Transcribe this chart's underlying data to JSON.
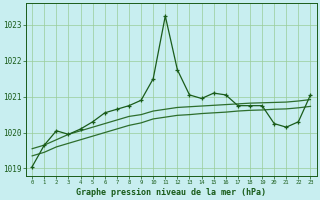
{
  "title": "Graphe pression niveau de la mer (hPa)",
  "background_color": "#c8eef0",
  "grid_color": "#99cc99",
  "line_color_volatile": "#1a5c1a",
  "line_color_smooth1": "#2d6e2d",
  "line_color_smooth2": "#2d6e2d",
  "xlim": [
    -0.5,
    23.5
  ],
  "ylim": [
    1018.8,
    1023.6
  ],
  "yticks": [
    1019,
    1020,
    1021,
    1022,
    1023
  ],
  "xticks": [
    0,
    1,
    2,
    3,
    4,
    5,
    6,
    7,
    8,
    9,
    10,
    11,
    12,
    13,
    14,
    15,
    16,
    17,
    18,
    19,
    20,
    21,
    22,
    23
  ],
  "volatile_x": [
    0,
    1,
    2,
    3,
    4,
    5,
    6,
    7,
    8,
    9,
    10,
    11,
    12,
    13,
    14,
    15,
    16,
    17,
    18,
    19,
    20,
    21,
    22,
    23
  ],
  "volatile_y": [
    1019.05,
    1019.65,
    1020.05,
    1019.95,
    1020.1,
    1020.3,
    1020.55,
    1020.65,
    1020.75,
    1020.9,
    1021.5,
    1023.25,
    1021.75,
    1021.05,
    1020.95,
    1021.1,
    1021.05,
    1020.75,
    1020.75,
    1020.75,
    1020.25,
    1020.15,
    1020.3,
    1021.05
  ],
  "smooth1_x": [
    0,
    1,
    2,
    3,
    4,
    5,
    6,
    7,
    8,
    9,
    10,
    11,
    12,
    13,
    14,
    15,
    16,
    17,
    18,
    19,
    20,
    21,
    22,
    23
  ],
  "smooth1_y": [
    1019.55,
    1019.65,
    1019.8,
    1019.95,
    1020.05,
    1020.15,
    1020.25,
    1020.35,
    1020.45,
    1020.5,
    1020.6,
    1020.65,
    1020.7,
    1020.72,
    1020.74,
    1020.76,
    1020.78,
    1020.8,
    1020.82,
    1020.83,
    1020.84,
    1020.85,
    1020.88,
    1020.92
  ],
  "smooth2_x": [
    0,
    1,
    2,
    3,
    4,
    5,
    6,
    7,
    8,
    9,
    10,
    11,
    12,
    13,
    14,
    15,
    16,
    17,
    18,
    19,
    20,
    21,
    22,
    23
  ],
  "smooth2_y": [
    1019.35,
    1019.45,
    1019.6,
    1019.7,
    1019.8,
    1019.9,
    1020.0,
    1020.1,
    1020.2,
    1020.27,
    1020.38,
    1020.43,
    1020.48,
    1020.5,
    1020.53,
    1020.55,
    1020.57,
    1020.6,
    1020.62,
    1020.63,
    1020.65,
    1020.66,
    1020.69,
    1020.73
  ]
}
